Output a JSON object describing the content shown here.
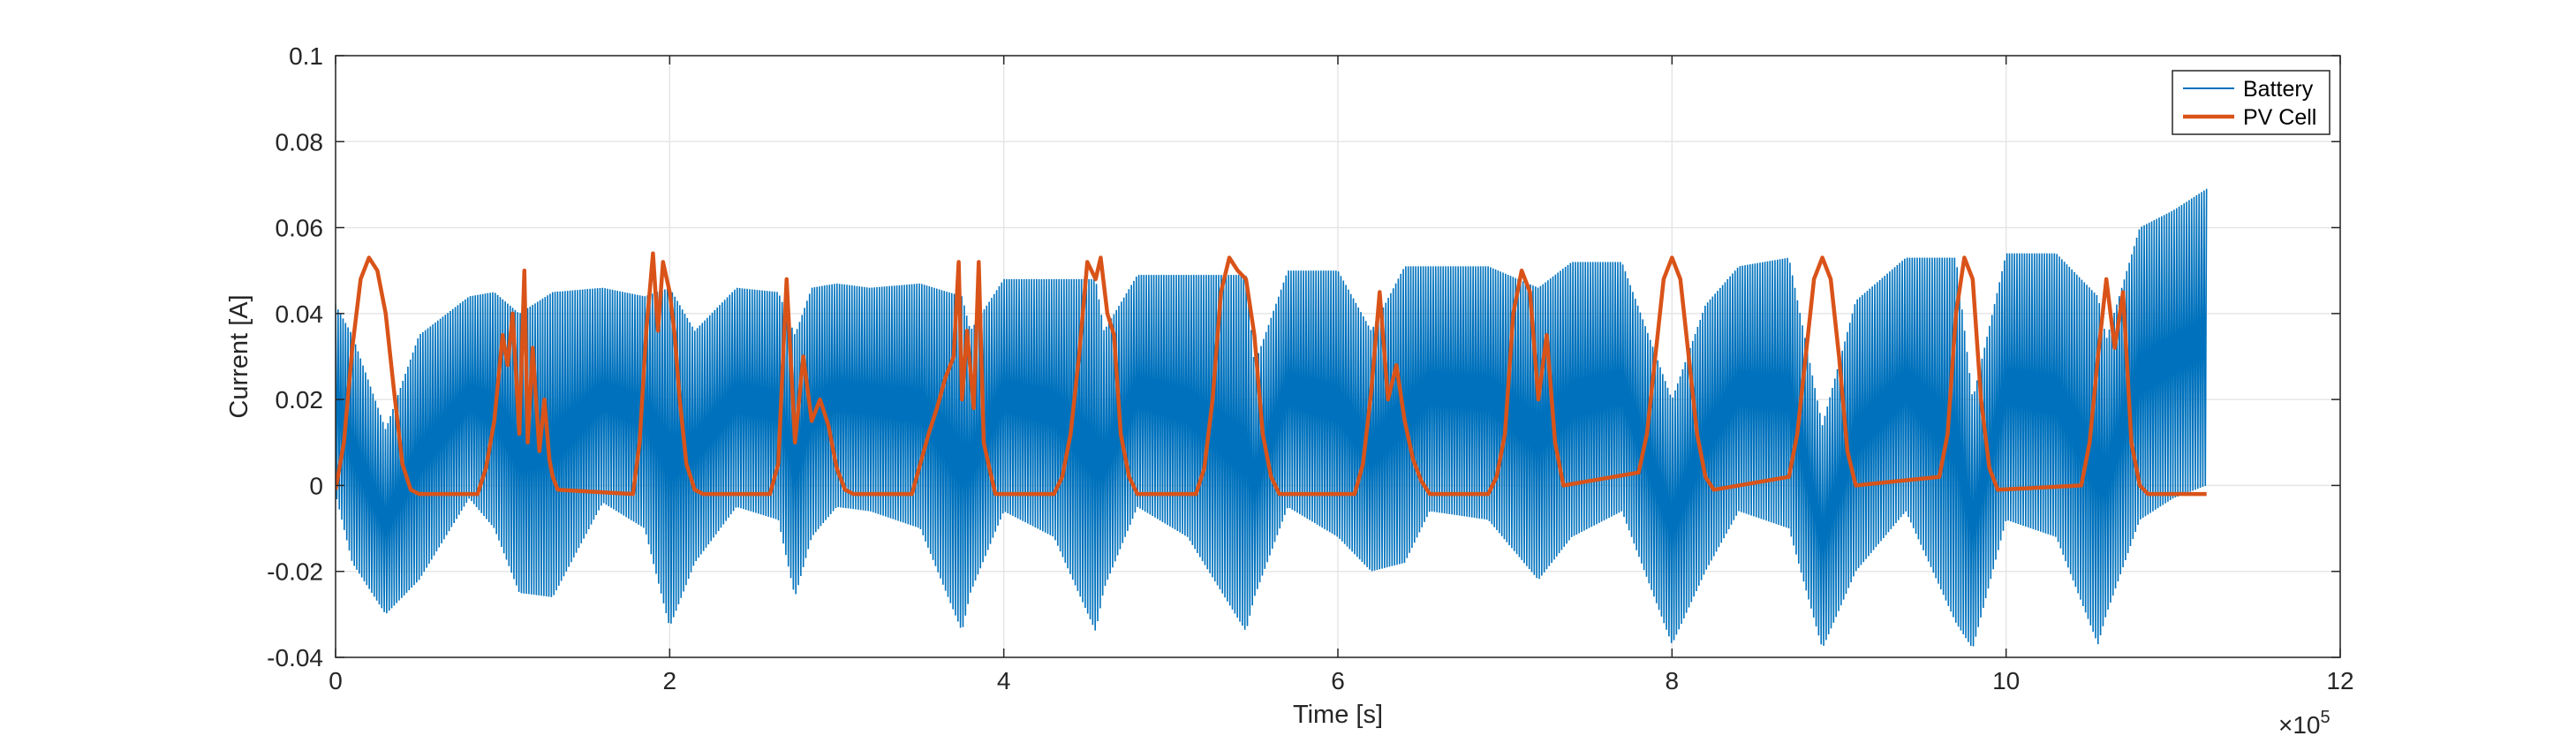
{
  "chart_data": {
    "type": "line",
    "xlabel": "Time [s]",
    "ylabel": "Current [A]",
    "x_exponent_label": "×10",
    "x_exponent_power": "5",
    "xlim": [
      0,
      12
    ],
    "ylim": [
      -0.04,
      0.1
    ],
    "x_ticks": [
      "0",
      "2",
      "4",
      "6",
      "8",
      "10",
      "12"
    ],
    "y_ticks": [
      "-0.04",
      "-0.02",
      "0",
      "0.02",
      "0.04",
      "0.06",
      "0.08",
      "0.1"
    ],
    "grid": true,
    "legend_position": "top-right",
    "series": [
      {
        "name": "Battery",
        "color": "#0072BD",
        "style": "dense oscillation band",
        "x": [
          0.0,
          0.1,
          0.3,
          0.5,
          0.8,
          0.95,
          1.1,
          1.3,
          1.6,
          1.85,
          2.0,
          2.15,
          2.4,
          2.65,
          2.75,
          2.85,
          3.0,
          3.2,
          3.5,
          3.75,
          3.8,
          4.0,
          4.3,
          4.55,
          4.6,
          4.8,
          5.1,
          5.45,
          5.5,
          5.7,
          6.0,
          6.2,
          6.4,
          6.55,
          6.9,
          7.2,
          7.4,
          7.7,
          8.0,
          8.2,
          8.4,
          8.7,
          8.9,
          9.1,
          9.4,
          9.7,
          9.8,
          10.0,
          10.3,
          10.55,
          10.6,
          10.8,
          11.0,
          11.2
        ],
        "upper": [
          0.042,
          0.035,
          0.013,
          0.035,
          0.044,
          0.045,
          0.04,
          0.045,
          0.046,
          0.044,
          0.046,
          0.036,
          0.046,
          0.045,
          0.035,
          0.046,
          0.047,
          0.046,
          0.047,
          0.044,
          0.036,
          0.048,
          0.048,
          0.048,
          0.036,
          0.049,
          0.049,
          0.049,
          0.028,
          0.05,
          0.05,
          0.036,
          0.051,
          0.051,
          0.051,
          0.046,
          0.052,
          0.052,
          0.02,
          0.042,
          0.051,
          0.053,
          0.014,
          0.043,
          0.053,
          0.053,
          0.02,
          0.054,
          0.054,
          0.044,
          0.034,
          0.06,
          0.064,
          0.069
        ],
        "lower": [
          -0.002,
          -0.018,
          -0.03,
          -0.022,
          -0.003,
          -0.01,
          -0.025,
          -0.026,
          -0.004,
          -0.01,
          -0.033,
          -0.018,
          -0.005,
          -0.008,
          -0.026,
          -0.012,
          -0.005,
          -0.006,
          -0.01,
          -0.034,
          -0.025,
          -0.006,
          -0.012,
          -0.034,
          -0.024,
          -0.005,
          -0.012,
          -0.034,
          -0.026,
          -0.005,
          -0.012,
          -0.02,
          -0.018,
          -0.006,
          -0.008,
          -0.022,
          -0.012,
          -0.006,
          -0.037,
          -0.02,
          -0.006,
          -0.01,
          -0.038,
          -0.02,
          -0.006,
          -0.032,
          -0.038,
          -0.008,
          -0.012,
          -0.037,
          -0.03,
          -0.008,
          -0.003,
          0.0
        ]
      },
      {
        "name": "PV Cell",
        "color": "#D95319",
        "x": [
          0.0,
          0.05,
          0.1,
          0.15,
          0.2,
          0.25,
          0.3,
          0.35,
          0.4,
          0.45,
          0.5,
          0.85,
          0.9,
          0.95,
          1.0,
          1.03,
          1.06,
          1.1,
          1.13,
          1.15,
          1.18,
          1.22,
          1.25,
          1.28,
          1.3,
          1.33,
          1.78,
          1.82,
          1.86,
          1.9,
          1.93,
          1.96,
          2.0,
          2.03,
          2.06,
          2.1,
          2.15,
          2.2,
          2.6,
          2.65,
          2.7,
          2.75,
          2.8,
          2.85,
          2.9,
          2.95,
          3.0,
          3.05,
          3.1,
          3.45,
          3.5,
          3.55,
          3.6,
          3.65,
          3.7,
          3.73,
          3.75,
          3.78,
          3.82,
          3.85,
          3.88,
          3.92,
          3.95,
          4.3,
          4.35,
          4.4,
          4.45,
          4.5,
          4.55,
          4.58,
          4.62,
          4.66,
          4.7,
          4.75,
          4.8,
          5.15,
          5.2,
          5.25,
          5.3,
          5.35,
          5.4,
          5.45,
          5.5,
          5.55,
          5.6,
          5.65,
          6.1,
          6.15,
          6.2,
          6.25,
          6.3,
          6.35,
          6.4,
          6.45,
          6.5,
          6.55,
          6.9,
          6.95,
          7.0,
          7.05,
          7.1,
          7.15,
          7.2,
          7.25,
          7.3,
          7.35,
          7.8,
          7.85,
          7.9,
          7.95,
          8.0,
          8.05,
          8.1,
          8.15,
          8.2,
          8.25,
          8.7,
          8.75,
          8.8,
          8.85,
          8.9,
          8.95,
          9.0,
          9.05,
          9.1,
          9.6,
          9.65,
          9.7,
          9.75,
          9.8,
          9.85,
          9.9,
          9.95,
          10.45,
          10.5,
          10.55,
          10.6,
          10.65,
          10.7,
          10.75,
          10.8,
          10.85,
          10.9,
          11.2
        ],
        "y": [
          -0.001,
          0.01,
          0.032,
          0.048,
          0.053,
          0.05,
          0.04,
          0.022,
          0.005,
          -0.001,
          -0.002,
          -0.002,
          0.004,
          0.015,
          0.035,
          0.028,
          0.04,
          0.012,
          0.05,
          0.01,
          0.032,
          0.008,
          0.02,
          0.006,
          0.002,
          -0.001,
          -0.002,
          0.01,
          0.036,
          0.054,
          0.036,
          0.052,
          0.045,
          0.035,
          0.02,
          0.005,
          -0.001,
          -0.002,
          -0.002,
          0.005,
          0.048,
          0.01,
          0.03,
          0.015,
          0.02,
          0.014,
          0.004,
          -0.001,
          -0.002,
          -0.002,
          0.005,
          0.012,
          0.018,
          0.025,
          0.03,
          0.052,
          0.02,
          0.036,
          0.018,
          0.052,
          0.01,
          0.003,
          -0.002,
          -0.002,
          0.002,
          0.012,
          0.03,
          0.052,
          0.048,
          0.053,
          0.04,
          0.035,
          0.012,
          0.002,
          -0.002,
          -0.002,
          0.004,
          0.02,
          0.045,
          0.053,
          0.05,
          0.048,
          0.035,
          0.012,
          0.002,
          -0.002,
          -0.002,
          0.005,
          0.022,
          0.045,
          0.02,
          0.028,
          0.015,
          0.006,
          0.001,
          -0.002,
          -0.002,
          0.002,
          0.012,
          0.04,
          0.05,
          0.045,
          0.02,
          0.035,
          0.01,
          0.0,
          0.003,
          0.012,
          0.03,
          0.048,
          0.053,
          0.048,
          0.03,
          0.012,
          0.002,
          -0.001,
          0.002,
          0.012,
          0.03,
          0.048,
          0.053,
          0.048,
          0.03,
          0.008,
          0.0,
          0.002,
          0.012,
          0.04,
          0.053,
          0.048,
          0.02,
          0.004,
          -0.001,
          0.0,
          0.01,
          0.03,
          0.048,
          0.032,
          0.045,
          0.01,
          0.0,
          -0.002,
          -0.002,
          -0.002
        ]
      }
    ]
  }
}
